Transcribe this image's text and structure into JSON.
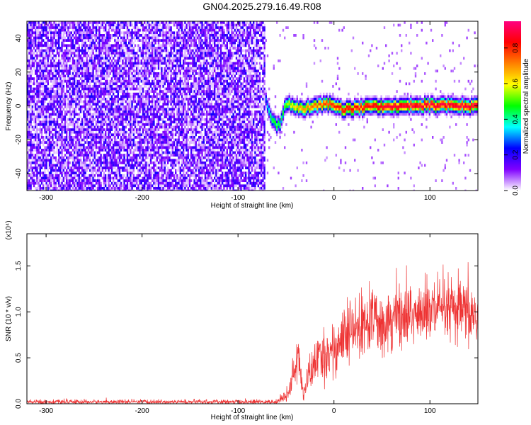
{
  "title": "GN04.2025.279.16.49.R08",
  "chart_data": [
    {
      "type": "heatmap",
      "xlabel": "Height of straight line (km)",
      "ylabel": "Frequency (Hz)",
      "xlim": [
        -320,
        150
      ],
      "ylim": [
        -50,
        50
      ],
      "xticks": [
        -300,
        -200,
        -100,
        0,
        100
      ],
      "yticks": [
        -40,
        -20,
        0,
        20,
        40
      ],
      "colorbar": {
        "label": "Normalized spectral amplitude",
        "range": [
          0.0,
          0.95
        ],
        "ticks": [
          0.0,
          0.2,
          0.4,
          0.6,
          0.8
        ],
        "colors": [
          "#ffffff",
          "#8000ff",
          "#0000ff",
          "#00ffff",
          "#00ff00",
          "#ffff00",
          "#ff8000",
          "#ff0000",
          "#ff0080"
        ]
      },
      "noise_region": {
        "x_range": [
          -320,
          -72
        ],
        "typical_amplitude": [
          0.05,
          0.2
        ]
      },
      "signal_track": [
        {
          "x": -72,
          "f": 5,
          "amp": 0.25
        },
        {
          "x": -66,
          "f": -7,
          "amp": 0.45
        },
        {
          "x": -60,
          "f": -12,
          "amp": 0.5
        },
        {
          "x": -55,
          "f": -10,
          "amp": 0.45
        },
        {
          "x": -52,
          "f": 0,
          "amp": 0.5
        },
        {
          "x": -45,
          "f": 1,
          "amp": 0.6
        },
        {
          "x": -35,
          "f": -2,
          "amp": 0.7
        },
        {
          "x": -20,
          "f": 0,
          "amp": 0.75
        },
        {
          "x": -5,
          "f": 1,
          "amp": 0.8
        },
        {
          "x": 10,
          "f": -2,
          "amp": 0.85
        },
        {
          "x": 30,
          "f": -1,
          "amp": 0.85
        },
        {
          "x": 60,
          "f": 0,
          "amp": 0.9
        },
        {
          "x": 90,
          "f": 0.5,
          "amp": 0.9
        },
        {
          "x": 120,
          "f": 0,
          "amp": 0.9
        },
        {
          "x": 150,
          "f": 0,
          "amp": 0.9
        }
      ]
    },
    {
      "type": "line",
      "xlabel": "Height of straight line (km)",
      "ylabel": "SNR (10 * v/v)",
      "scale_label": "(x10⁴)",
      "xlim": [
        -320,
        150
      ],
      "ylim": [
        0,
        1.85
      ],
      "xticks": [
        -300,
        -200,
        -100,
        0,
        100
      ],
      "yticks": [
        "0.0",
        "0.5",
        "1.0",
        "1.5"
      ],
      "color": "#ee3333",
      "envelope": [
        {
          "x": -320,
          "mean": 0.02,
          "noise": 0.02
        },
        {
          "x": -60,
          "mean": 0.02,
          "noise": 0.02
        },
        {
          "x": -48,
          "mean": 0.1,
          "noise": 0.06
        },
        {
          "x": -42,
          "mean": 0.35,
          "noise": 0.15
        },
        {
          "x": -37,
          "mean": 0.5,
          "noise": 0.2
        },
        {
          "x": -32,
          "mean": 0.1,
          "noise": 0.08
        },
        {
          "x": -28,
          "mean": 0.25,
          "noise": 0.15
        },
        {
          "x": -20,
          "mean": 0.45,
          "noise": 0.2
        },
        {
          "x": -5,
          "mean": 0.55,
          "noise": 0.25
        },
        {
          "x": 15,
          "mean": 0.75,
          "noise": 0.3
        },
        {
          "x": 40,
          "mean": 0.9,
          "noise": 0.3
        },
        {
          "x": 70,
          "mean": 0.95,
          "noise": 0.3
        },
        {
          "x": 100,
          "mean": 1.0,
          "noise": 0.3
        },
        {
          "x": 130,
          "mean": 1.0,
          "noise": 0.3
        },
        {
          "x": 150,
          "mean": 0.95,
          "noise": 0.3
        }
      ]
    }
  ]
}
